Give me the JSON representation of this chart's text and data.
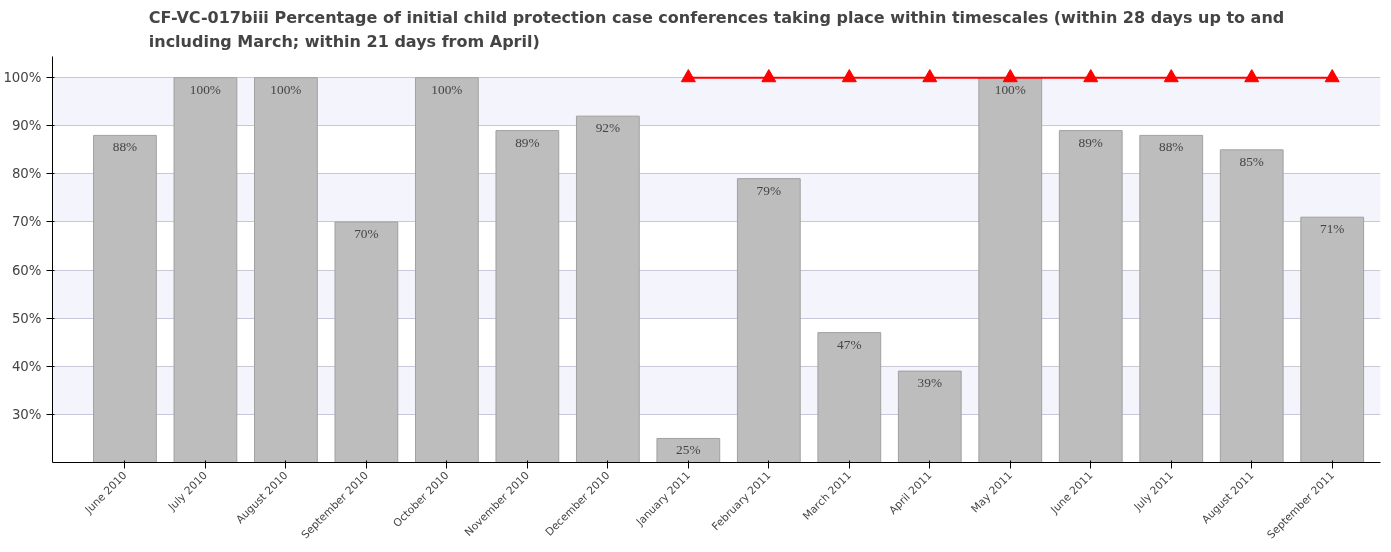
{
  "chart_data": {
    "type": "bar",
    "title": "CF-VC-017biii Percentage of initial child protection case conferences taking place within timescales (within 28 days up to and including March; within 21 days from April)",
    "categories": [
      "June 2010",
      "July 2010",
      "August 2010",
      "September 2010",
      "October 2010",
      "November 2010",
      "December 2010",
      "January 2011",
      "February 2011",
      "March 2011",
      "April 2011",
      "May 2011",
      "June 2011",
      "July 2011",
      "August 2011",
      "September 2011"
    ],
    "series": [
      {
        "color": "#bdbdbd",
        "values": [
          88,
          100,
          100,
          70,
          100,
          89,
          92,
          25,
          79,
          47,
          39,
          100,
          89,
          88,
          85,
          71
        ],
        "value_labels": [
          "88%",
          "100%",
          "100%",
          "70%",
          "100%",
          "89%",
          "92%",
          "25%",
          "79%",
          "47%",
          "39%",
          "100%",
          "89%",
          "88%",
          "85%",
          "71%"
        ]
      },
      {
        "type": "line",
        "color": "#ff0000",
        "marker": "triangle",
        "values": [
          null,
          null,
          null,
          null,
          null,
          null,
          null,
          100,
          100,
          100,
          100,
          100,
          100,
          100,
          100,
          100
        ]
      }
    ],
    "ylim": [
      20,
      104.4
    ],
    "yticks": [
      {
        "value": 30,
        "label": "30%"
      },
      {
        "value": 40,
        "label": "40%"
      },
      {
        "value": 50,
        "label": "50%"
      },
      {
        "value": 60,
        "label": "60%"
      },
      {
        "value": 70,
        "label": "70%"
      },
      {
        "value": 80,
        "label": "80%"
      },
      {
        "value": 90,
        "label": "90%"
      },
      {
        "value": 100,
        "label": "100%"
      }
    ],
    "grid": "y"
  }
}
